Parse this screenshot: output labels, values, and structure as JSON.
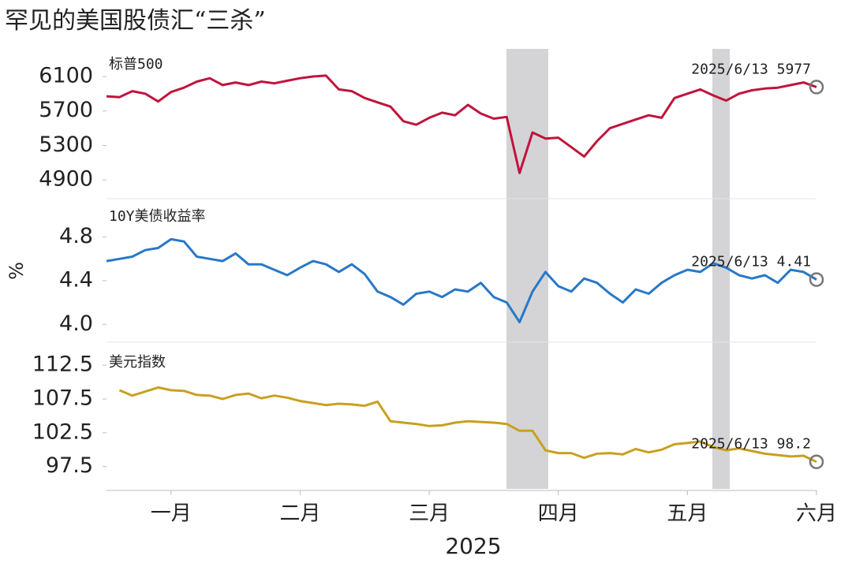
{
  "title": "罕见的美国股债汇“三杀”",
  "chart_data": [
    {
      "type": "line",
      "label": "标普500",
      "color": "#c0143c",
      "annotation": "2025/6/13  5977",
      "ylim": [
        4700,
        6420
      ],
      "yticks": [
        4900,
        5300,
        5700,
        6100
      ],
      "values": [
        5870,
        5860,
        5930,
        5900,
        5810,
        5920,
        5970,
        6040,
        6080,
        6000,
        6030,
        6000,
        6040,
        6020,
        6050,
        6080,
        6100,
        6110,
        5950,
        5930,
        5850,
        5800,
        5750,
        5580,
        5540,
        5620,
        5680,
        5650,
        5770,
        5670,
        5610,
        5630,
        4980,
        5450,
        5380,
        5390,
        5280,
        5170,
        5350,
        5500,
        5550,
        5600,
        5650,
        5620,
        5850,
        5900,
        5950,
        5880,
        5820,
        5900,
        5940,
        5960,
        5970,
        6000,
        6030,
        5977
      ]
    },
    {
      "type": "line",
      "label": "10Y美债收益率",
      "ylabel": "%",
      "color": "#2878c8",
      "annotation": "2025/6/13  4.41",
      "ylim": [
        3.85,
        5.13
      ],
      "yticks": [
        {
          "value": 4,
          "label": "4.0"
        },
        4.4,
        4.8
      ],
      "values": [
        4.58,
        4.6,
        4.62,
        4.68,
        4.7,
        4.78,
        4.76,
        4.62,
        4.6,
        4.58,
        4.65,
        4.55,
        4.55,
        4.5,
        4.45,
        4.52,
        4.58,
        4.55,
        4.48,
        4.55,
        4.46,
        4.3,
        4.25,
        4.18,
        4.28,
        4.3,
        4.25,
        4.32,
        4.3,
        4.38,
        4.25,
        4.2,
        4.02,
        4.3,
        4.48,
        4.35,
        4.3,
        4.42,
        4.38,
        4.28,
        4.2,
        4.32,
        4.28,
        4.38,
        4.45,
        4.5,
        4.48,
        4.56,
        4.52,
        4.45,
        4.42,
        4.45,
        4.38,
        4.5,
        4.48,
        4.41
      ]
    },
    {
      "type": "line",
      "label": "美元指数",
      "color": "#c8a020",
      "annotation": "2025/6/13  98.2",
      "xlabel": "2025",
      "ylim": [
        94.2,
        115.2
      ],
      "yticks": [
        97.5,
        102.5,
        107.5,
        112.5
      ],
      "categories": [
        null,
        null,
        null,
        null,
        null,
        "一月",
        null,
        null,
        null,
        null,
        null,
        null,
        null,
        null,
        null,
        "二月",
        null,
        null,
        null,
        null,
        null,
        null,
        null,
        null,
        null,
        "三月",
        null,
        null,
        null,
        null,
        null,
        null,
        null,
        null,
        null,
        "四月",
        null,
        null,
        null,
        null,
        null,
        null,
        null,
        null,
        null,
        "五月",
        null,
        null,
        null,
        null,
        null,
        null,
        null,
        null,
        null,
        "六月"
      ],
      "values": [
        null,
        108.8,
        108.0,
        108.6,
        109.2,
        108.8,
        108.7,
        108.1,
        108.0,
        107.5,
        108.1,
        108.3,
        107.6,
        108.0,
        107.7,
        107.2,
        106.9,
        106.6,
        106.8,
        106.7,
        106.5,
        107.1,
        104.2,
        104.0,
        103.8,
        103.5,
        103.6,
        104.0,
        104.2,
        104.1,
        104.0,
        103.8,
        102.8,
        102.8,
        99.9,
        99.5,
        99.5,
        98.8,
        99.4,
        99.5,
        99.3,
        100.1,
        99.6,
        100.0,
        100.8,
        101.0,
        101.2,
        100.4,
        99.9,
        100.2,
        99.8,
        99.4,
        99.2,
        99.0,
        99.1,
        98.2
      ]
    }
  ]
}
